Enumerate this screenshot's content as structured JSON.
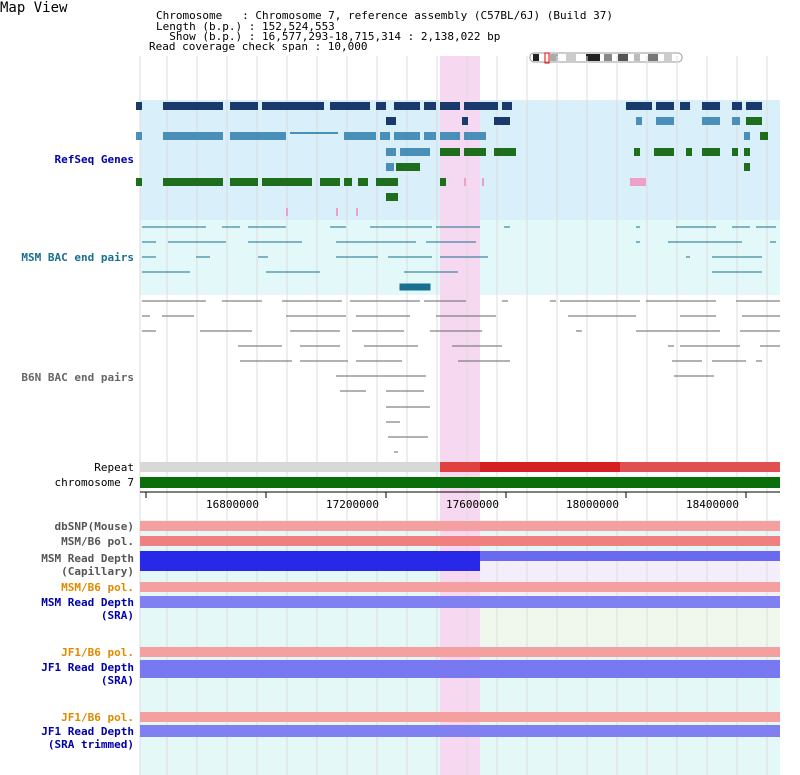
{
  "page_title": "Map View",
  "header": {
    "chromosome_line": "Chromosome   : Chromosome 7, reference assembly (C57BL/6J) (Build 37)",
    "length_line": "Length (b.p.) : 152,524,553",
    "show_line": "  Show (b.p.) : 16,577,293-18,715,314 : 2,138,022 bp",
    "coverage_line": "Read coverage check span : 10,000"
  },
  "tracks": {
    "refseq": "RefSeq Genes",
    "msm_bac": "MSM BAC end pairs",
    "b6n_bac": "B6N BAC end pairs",
    "repeat": "Repeat",
    "chromosome": "chromosome 7",
    "dbsnp": "dbSNP(Mouse)",
    "msm_b6_pol_1": "MSM/B6 pol.",
    "msm_read_cap": "MSM Read Depth\n(Capillary)",
    "msm_b6_pol_2": "MSM/B6 pol.",
    "msm_read_sra": "MSM Read Depth\n(SRA)",
    "jf1_b6_pol_1": "JF1/B6 pol.",
    "jf1_read_sra": "JF1 Read Depth\n(SRA)",
    "jf1_b6_pol_2": "JF1/B6 pol.",
    "jf1_read_trim": "JF1 Read Depth\n(SRA trimmed)"
  },
  "axis": {
    "ticks": [
      "16800000",
      "17200000",
      "17600000",
      "18000000",
      "18400000"
    ]
  },
  "colors": {
    "refseq_bg": "#d9f0fa",
    "bac_bg": "#e3f8f8",
    "highlight": "#f7d6f0",
    "gene_dark": "#1a3a6e",
    "gene_mid": "#4a8fb8",
    "gene_green": "#1e6e1e",
    "msm_blue": "#1a6e8f",
    "b6n_gray": "#666666",
    "chrom_green": "#0a6e0a",
    "label_blue": "#0000aa",
    "label_orange": "#e08a00",
    "label_teal": "#1a6e8f"
  }
}
